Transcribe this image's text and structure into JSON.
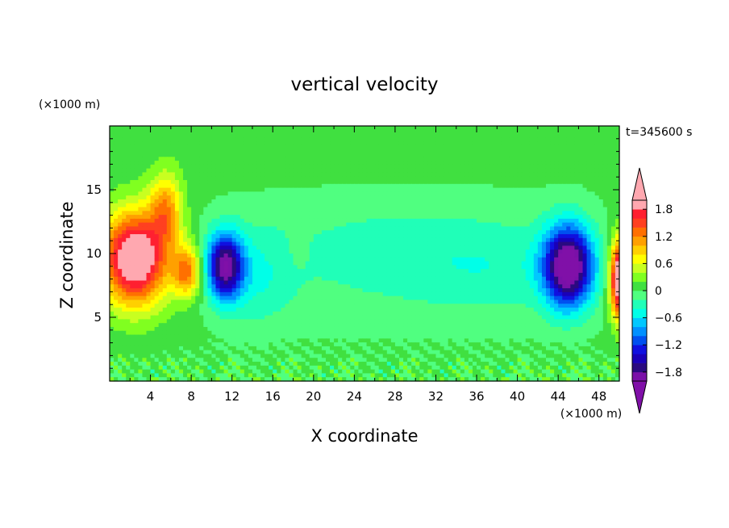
{
  "chart_data": {
    "type": "heatmap",
    "title": "vertical velocity",
    "xlabel": "X coordinate",
    "ylabel": "Z coordinate",
    "x_unit": "(×1000 m)",
    "y_unit": "(×1000 m)",
    "time_label": "t=345600 s",
    "xlim": [
      0,
      50
    ],
    "ylim": [
      0,
      20
    ],
    "x_ticks": [
      "4",
      "8",
      "12",
      "16",
      "20",
      "24",
      "28",
      "32",
      "36",
      "40",
      "44",
      "48"
    ],
    "x_tick_values": [
      4,
      8,
      12,
      16,
      20,
      24,
      28,
      32,
      36,
      40,
      44,
      48
    ],
    "y_ticks": [
      "5",
      "10",
      "15"
    ],
    "y_tick_values": [
      5,
      10,
      15
    ],
    "colorbar": {
      "levels": [
        -2.0,
        -1.8,
        -1.6,
        -1.4,
        -1.2,
        -1.0,
        -0.8,
        -0.6,
        -0.4,
        -0.2,
        0.0,
        0.2,
        0.4,
        0.6,
        0.8,
        1.0,
        1.2,
        1.4,
        1.6,
        1.8,
        2.0
      ],
      "labels": [
        "1.8",
        "1.2",
        "0.6",
        "0",
        "−0.6",
        "−1.2",
        "−1.8"
      ],
      "label_values": [
        1.8,
        1.2,
        0.6,
        0.0,
        -0.6,
        -1.2,
        -1.8
      ],
      "colors": [
        "#7a10a8",
        "#2a0a80",
        "#1a00b8",
        "#1010e0",
        "#0050f0",
        "#0090ff",
        "#00c8ff",
        "#00ffe8",
        "#20ffb8",
        "#50ff80",
        "#40e040",
        "#80ff20",
        "#c8ff20",
        "#ffff00",
        "#ffd000",
        "#ffa000",
        "#ff7000",
        "#ff4020",
        "#ff2030",
        "#ffa8b0"
      ],
      "low_color": "#8010a8",
      "high_color": "#ffa8b0"
    },
    "features": [
      {
        "kind": "updraft",
        "x": 2.5,
        "z": 9.5,
        "w_max": 2.0
      },
      {
        "kind": "updraft",
        "x": 7.5,
        "z": 8.5,
        "w_max": 1.6
      },
      {
        "kind": "downdraft",
        "x": 11.5,
        "z": 9.0,
        "w_min": -1.6
      },
      {
        "kind": "downdraft",
        "x": 45.0,
        "z": 9.0,
        "w_min": -1.8
      },
      {
        "kind": "updraft",
        "x": 50.0,
        "z": 8.0,
        "w_max": 2.0
      }
    ]
  }
}
